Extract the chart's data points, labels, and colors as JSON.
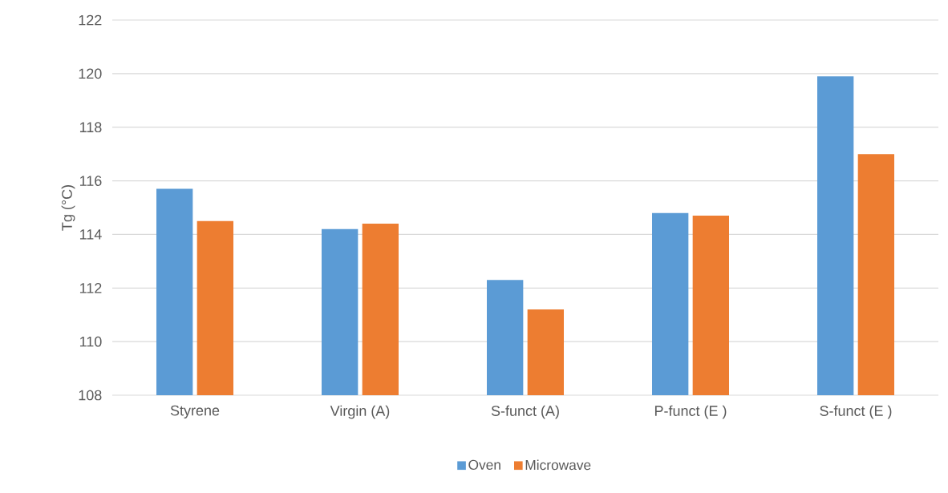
{
  "chart_data": {
    "type": "bar",
    "ylabel": "Tg (°C)",
    "categories": [
      "Styrene",
      "Virgin (A)",
      "S-funct (A)",
      "P-funct (E )",
      "S-funct (E )"
    ],
    "series": [
      {
        "name": "Oven",
        "color": "#5b9bd5",
        "values": [
          115.7,
          114.2,
          112.3,
          114.8,
          119.9
        ]
      },
      {
        "name": "Microwave",
        "color": "#ed7d31",
        "values": [
          114.5,
          114.4,
          111.2,
          114.7,
          117.0
        ]
      }
    ],
    "ylim": [
      108,
      122
    ],
    "yticks": [
      108,
      110,
      112,
      114,
      116,
      118,
      120,
      122
    ],
    "grid": "y",
    "legend": "bottom"
  }
}
